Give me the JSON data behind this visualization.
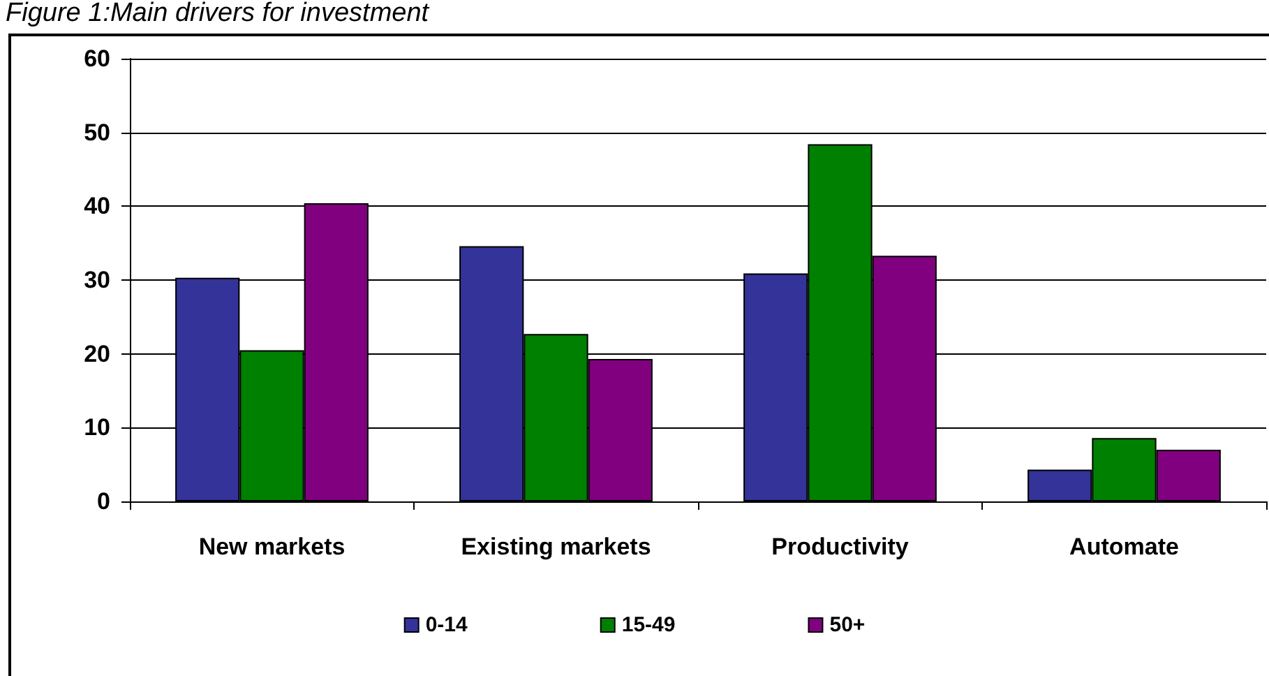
{
  "chart_data": {
    "type": "bar",
    "title": "Figure 1:Main drivers for investment",
    "categories": [
      "New markets",
      "Existing markets",
      "Productivity",
      "Automate"
    ],
    "series": [
      {
        "name": "0-14",
        "color": "#333399",
        "values": [
          30.3,
          34.6,
          30.9,
          4.3
        ]
      },
      {
        "name": "15-49",
        "color": "#008000",
        "values": [
          20.5,
          22.7,
          48.4,
          8.6
        ]
      },
      {
        "name": "50+",
        "color": "#800080",
        "values": [
          40.4,
          19.3,
          33.3,
          7.0
        ]
      }
    ],
    "ylim": [
      0,
      60
    ],
    "yticks": [
      0,
      10,
      20,
      30,
      40,
      50,
      60
    ],
    "grid": "y",
    "legend": "bottom"
  }
}
